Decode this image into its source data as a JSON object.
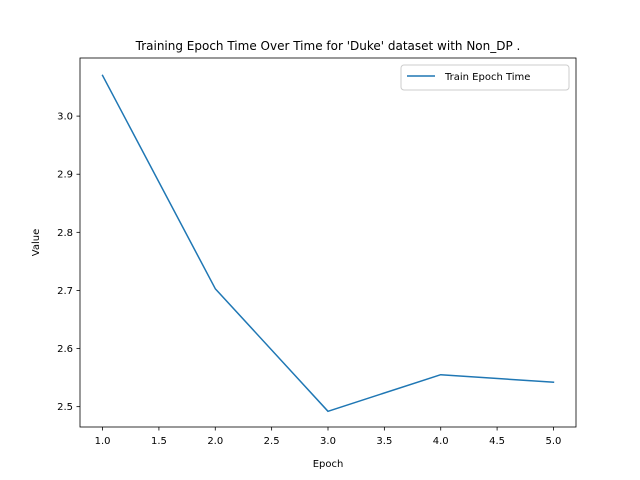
{
  "chart_data": {
    "type": "line",
    "title": "Training Epoch Time Over Time for 'Duke' dataset with Non_DP .",
    "xlabel": "Epoch",
    "ylabel": "Value",
    "x": [
      1,
      2,
      3,
      4,
      5
    ],
    "xlim": [
      0.8,
      5.2
    ],
    "ylim": [
      2.465,
      3.1
    ],
    "xticks": [
      1.0,
      1.5,
      2.0,
      2.5,
      3.0,
      3.5,
      4.0,
      4.5,
      5.0
    ],
    "xtick_labels": [
      "1.0",
      "1.5",
      "2.0",
      "2.5",
      "3.0",
      "3.5",
      "4.0",
      "4.5",
      "5.0"
    ],
    "yticks": [
      2.5,
      2.6,
      2.7,
      2.8,
      2.9,
      3.0
    ],
    "ytick_labels": [
      "2.5",
      "2.6",
      "2.7",
      "2.8",
      "2.9",
      "3.0"
    ],
    "grid": false,
    "legend_position": "top-right",
    "series": [
      {
        "name": "Train Epoch Time",
        "color": "#1f77b4",
        "values": [
          3.07,
          2.703,
          2.492,
          2.555,
          2.542
        ]
      }
    ]
  }
}
